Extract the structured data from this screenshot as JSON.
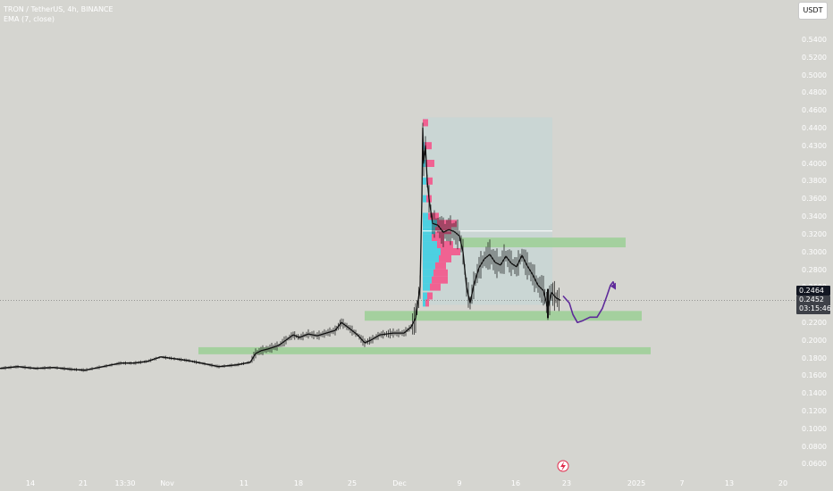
{
  "header": {
    "symbol_line": "TRON / TetherUS, 4h, BINANCE",
    "indicator_line": "EMA (7, close)"
  },
  "toolbar": {
    "currency_label": "USDT"
  },
  "price_tags": {
    "last": "0.2464",
    "current": "0.2452",
    "countdown": "03:15:46"
  },
  "colors": {
    "background": "#d5d5d0",
    "candle": "#111111",
    "zone": "#9fcf98",
    "vp_up": "#4dd0e1",
    "vp_down": "#f06292",
    "projection": "#5e2a9a",
    "range_box": "#c6d6d6"
  },
  "chart_data": {
    "type": "candlestick",
    "y_axis": {
      "ticks": [
        "0.5400",
        "0.5200",
        "0.5000",
        "0.4800",
        "0.4600",
        "0.4400",
        "0.4300",
        "0.4000",
        "0.3800",
        "0.3600",
        "0.3400",
        "0.3200",
        "0.3000",
        "0.2800",
        "0.2600",
        "0.2400",
        "0.2200",
        "0.2000",
        "0.1800",
        "0.1600",
        "0.1400",
        "0.1200",
        "0.1000",
        "0.0800",
        "0.0600"
      ]
    },
    "x_axis": {
      "ticks": [
        "14",
        "21",
        "13:30",
        "Nov",
        "11",
        "18",
        "25",
        "Dec",
        "9",
        "16",
        "23",
        "2025",
        "7",
        "13",
        "20"
      ]
    },
    "price_path": [
      [
        0,
        0.168
      ],
      [
        20,
        0.17
      ],
      [
        40,
        0.168
      ],
      [
        60,
        0.169
      ],
      [
        80,
        0.167
      ],
      [
        95,
        0.166
      ],
      [
        115,
        0.17
      ],
      [
        135,
        0.174
      ],
      [
        150,
        0.174
      ],
      [
        165,
        0.176
      ],
      [
        180,
        0.181
      ],
      [
        195,
        0.179
      ],
      [
        210,
        0.177
      ],
      [
        225,
        0.174
      ],
      [
        245,
        0.17
      ],
      [
        265,
        0.172
      ],
      [
        280,
        0.175
      ],
      [
        286,
        0.185
      ],
      [
        292,
        0.188
      ],
      [
        300,
        0.19
      ],
      [
        312,
        0.194
      ],
      [
        320,
        0.2
      ],
      [
        328,
        0.206
      ],
      [
        335,
        0.203
      ],
      [
        345,
        0.207
      ],
      [
        355,
        0.205
      ],
      [
        365,
        0.208
      ],
      [
        375,
        0.211
      ],
      [
        382,
        0.22
      ],
      [
        390,
        0.214
      ],
      [
        400,
        0.206
      ],
      [
        408,
        0.197
      ],
      [
        415,
        0.2
      ],
      [
        425,
        0.206
      ],
      [
        440,
        0.208
      ],
      [
        452,
        0.208
      ],
      [
        460,
        0.215
      ],
      [
        465,
        0.225
      ],
      [
        470,
        0.26
      ],
      [
        472,
        0.36
      ],
      [
        473,
        0.44
      ],
      [
        474,
        0.4
      ],
      [
        476,
        0.42
      ],
      [
        478,
        0.38
      ],
      [
        480,
        0.36
      ],
      [
        484,
        0.332
      ],
      [
        490,
        0.33
      ],
      [
        496,
        0.322
      ],
      [
        502,
        0.325
      ],
      [
        508,
        0.323
      ],
      [
        514,
        0.318
      ],
      [
        518,
        0.3
      ],
      [
        522,
        0.26
      ],
      [
        526,
        0.242
      ],
      [
        530,
        0.262
      ],
      [
        536,
        0.282
      ],
      [
        542,
        0.292
      ],
      [
        548,
        0.297
      ],
      [
        554,
        0.288
      ],
      [
        560,
        0.285
      ],
      [
        566,
        0.295
      ],
      [
        572,
        0.287
      ],
      [
        578,
        0.283
      ],
      [
        584,
        0.296
      ],
      [
        590,
        0.284
      ],
      [
        596,
        0.274
      ],
      [
        602,
        0.262
      ],
      [
        608,
        0.256
      ],
      [
        613,
        0.236
      ],
      [
        617,
        0.254
      ],
      [
        622,
        0.248
      ],
      [
        627,
        0.2452
      ]
    ],
    "projection_path": [
      [
        630,
        0.25
      ],
      [
        637,
        0.242
      ],
      [
        641,
        0.229
      ],
      [
        646,
        0.22
      ],
      [
        652,
        0.222
      ],
      [
        660,
        0.226
      ],
      [
        668,
        0.226
      ],
      [
        674,
        0.236
      ],
      [
        679,
        0.25
      ],
      [
        683,
        0.262
      ],
      [
        686,
        0.266
      ],
      [
        688,
        0.26
      ]
    ],
    "zones": [
      {
        "x0": 222,
        "x1": 728,
        "y0": 0.184,
        "y1": 0.192
      },
      {
        "x0": 408,
        "x1": 718,
        "y0": 0.222,
        "y1": 0.233
      },
      {
        "x0": 515,
        "x1": 700,
        "y0": 0.305,
        "y1": 0.316
      }
    ],
    "range_box": {
      "x0": 473,
      "x1": 618,
      "y0": 0.24,
      "y1": 0.452
    },
    "range_line_price": 0.3235,
    "volume_profile": [
      {
        "price": 0.446,
        "up": 0,
        "down": 6
      },
      {
        "price": 0.42,
        "up": 2,
        "down": 8
      },
      {
        "price": 0.4,
        "up": 3,
        "down": 10
      },
      {
        "price": 0.38,
        "up": 4,
        "down": 7
      },
      {
        "price": 0.36,
        "up": 4,
        "down": 6
      },
      {
        "price": 0.34,
        "up": 6,
        "down": 12
      },
      {
        "price": 0.332,
        "up": 16,
        "down": 22
      },
      {
        "price": 0.324,
        "up": 14,
        "down": 18
      },
      {
        "price": 0.316,
        "up": 10,
        "down": 14
      },
      {
        "price": 0.308,
        "up": 16,
        "down": 18
      },
      {
        "price": 0.3,
        "up": 20,
        "down": 22
      },
      {
        "price": 0.292,
        "up": 18,
        "down": 14
      },
      {
        "price": 0.284,
        "up": 14,
        "down": 12
      },
      {
        "price": 0.276,
        "up": 12,
        "down": 16
      },
      {
        "price": 0.268,
        "up": 10,
        "down": 18
      },
      {
        "price": 0.26,
        "up": 8,
        "down": 12
      },
      {
        "price": 0.25,
        "up": 5,
        "down": 6
      },
      {
        "price": 0.242,
        "up": 3,
        "down": 4
      }
    ],
    "last_price": 0.2464,
    "current_price": 0.2452
  }
}
